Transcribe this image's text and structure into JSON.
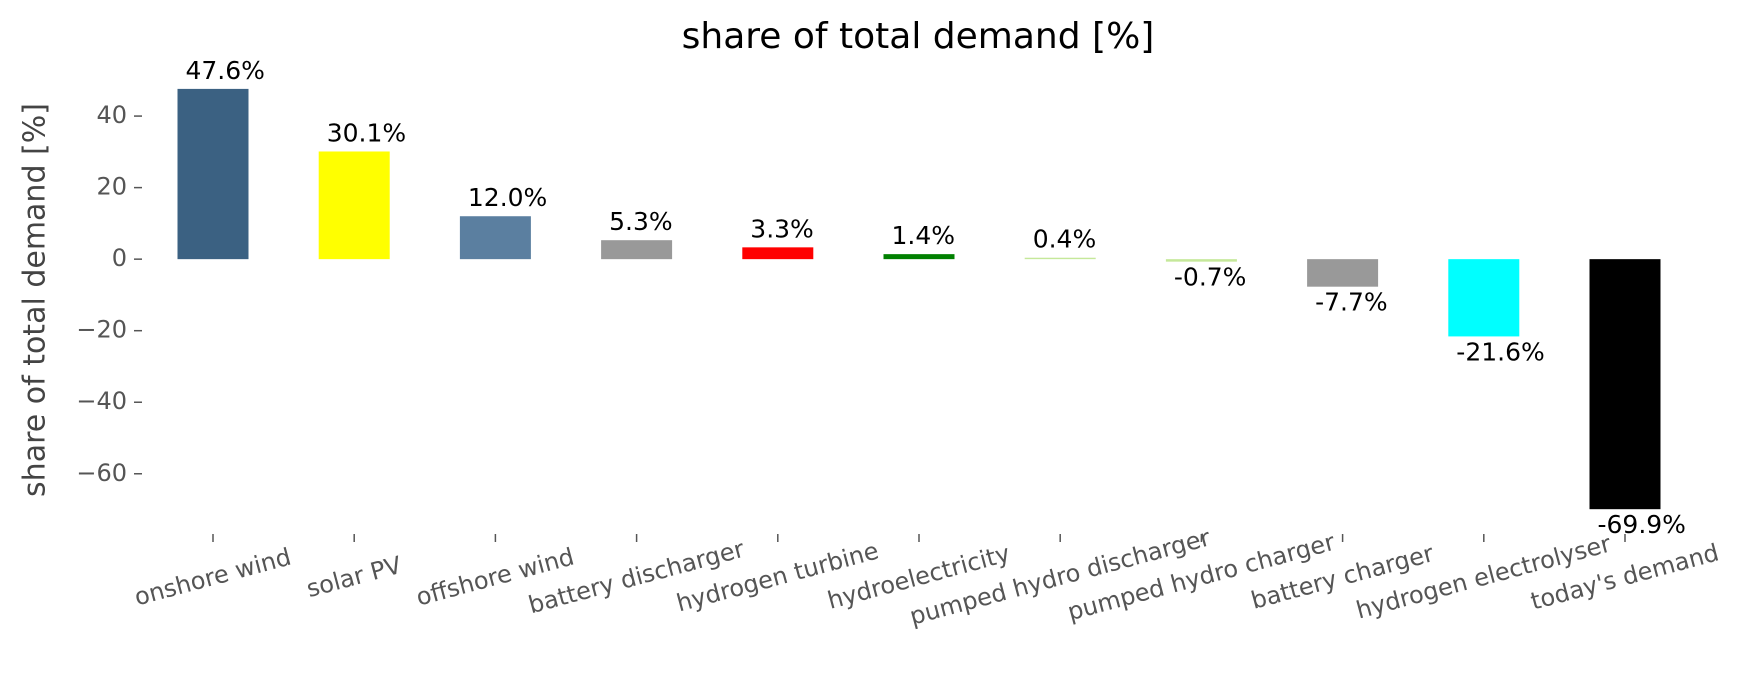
{
  "chart_data": {
    "type": "bar",
    "title": "share of total demand [%]",
    "y_label": "share of total demand [%]",
    "categories": [
      "onshore wind",
      "solar PV",
      "offshore wind",
      "battery discharger",
      "hydrogen turbine",
      "hydroelectricity",
      "pumped hydro discharger",
      "pumped hydro charger",
      "battery charger",
      "hydrogen electrolyser",
      "today's demand"
    ],
    "values": [
      47.6,
      30.1,
      12.0,
      5.3,
      3.3,
      1.4,
      0.4,
      -0.7,
      -7.7,
      -21.6,
      -69.9
    ],
    "value_labels": [
      "47.6%",
      "30.1%",
      "12.0%",
      "5.3%",
      "3.3%",
      "1.4%",
      "0.4%",
      "-0.7%",
      "-7.7%",
      "-21.6%",
      "-69.9%"
    ],
    "colors": [
      "#3b6182",
      "#ffff00",
      "#5b7fa0",
      "#999999",
      "#ff0000",
      "#008000",
      "#c5e89a",
      "#c5e89a",
      "#999999",
      "#00ffff",
      "#000000"
    ],
    "ylim": [
      -76,
      54
    ],
    "yticks": [
      {
        "value": -60,
        "label": "−60"
      },
      {
        "value": -40,
        "label": "−40"
      },
      {
        "value": -20,
        "label": "−20"
      },
      0,
      20,
      40
    ],
    "grid": false
  }
}
